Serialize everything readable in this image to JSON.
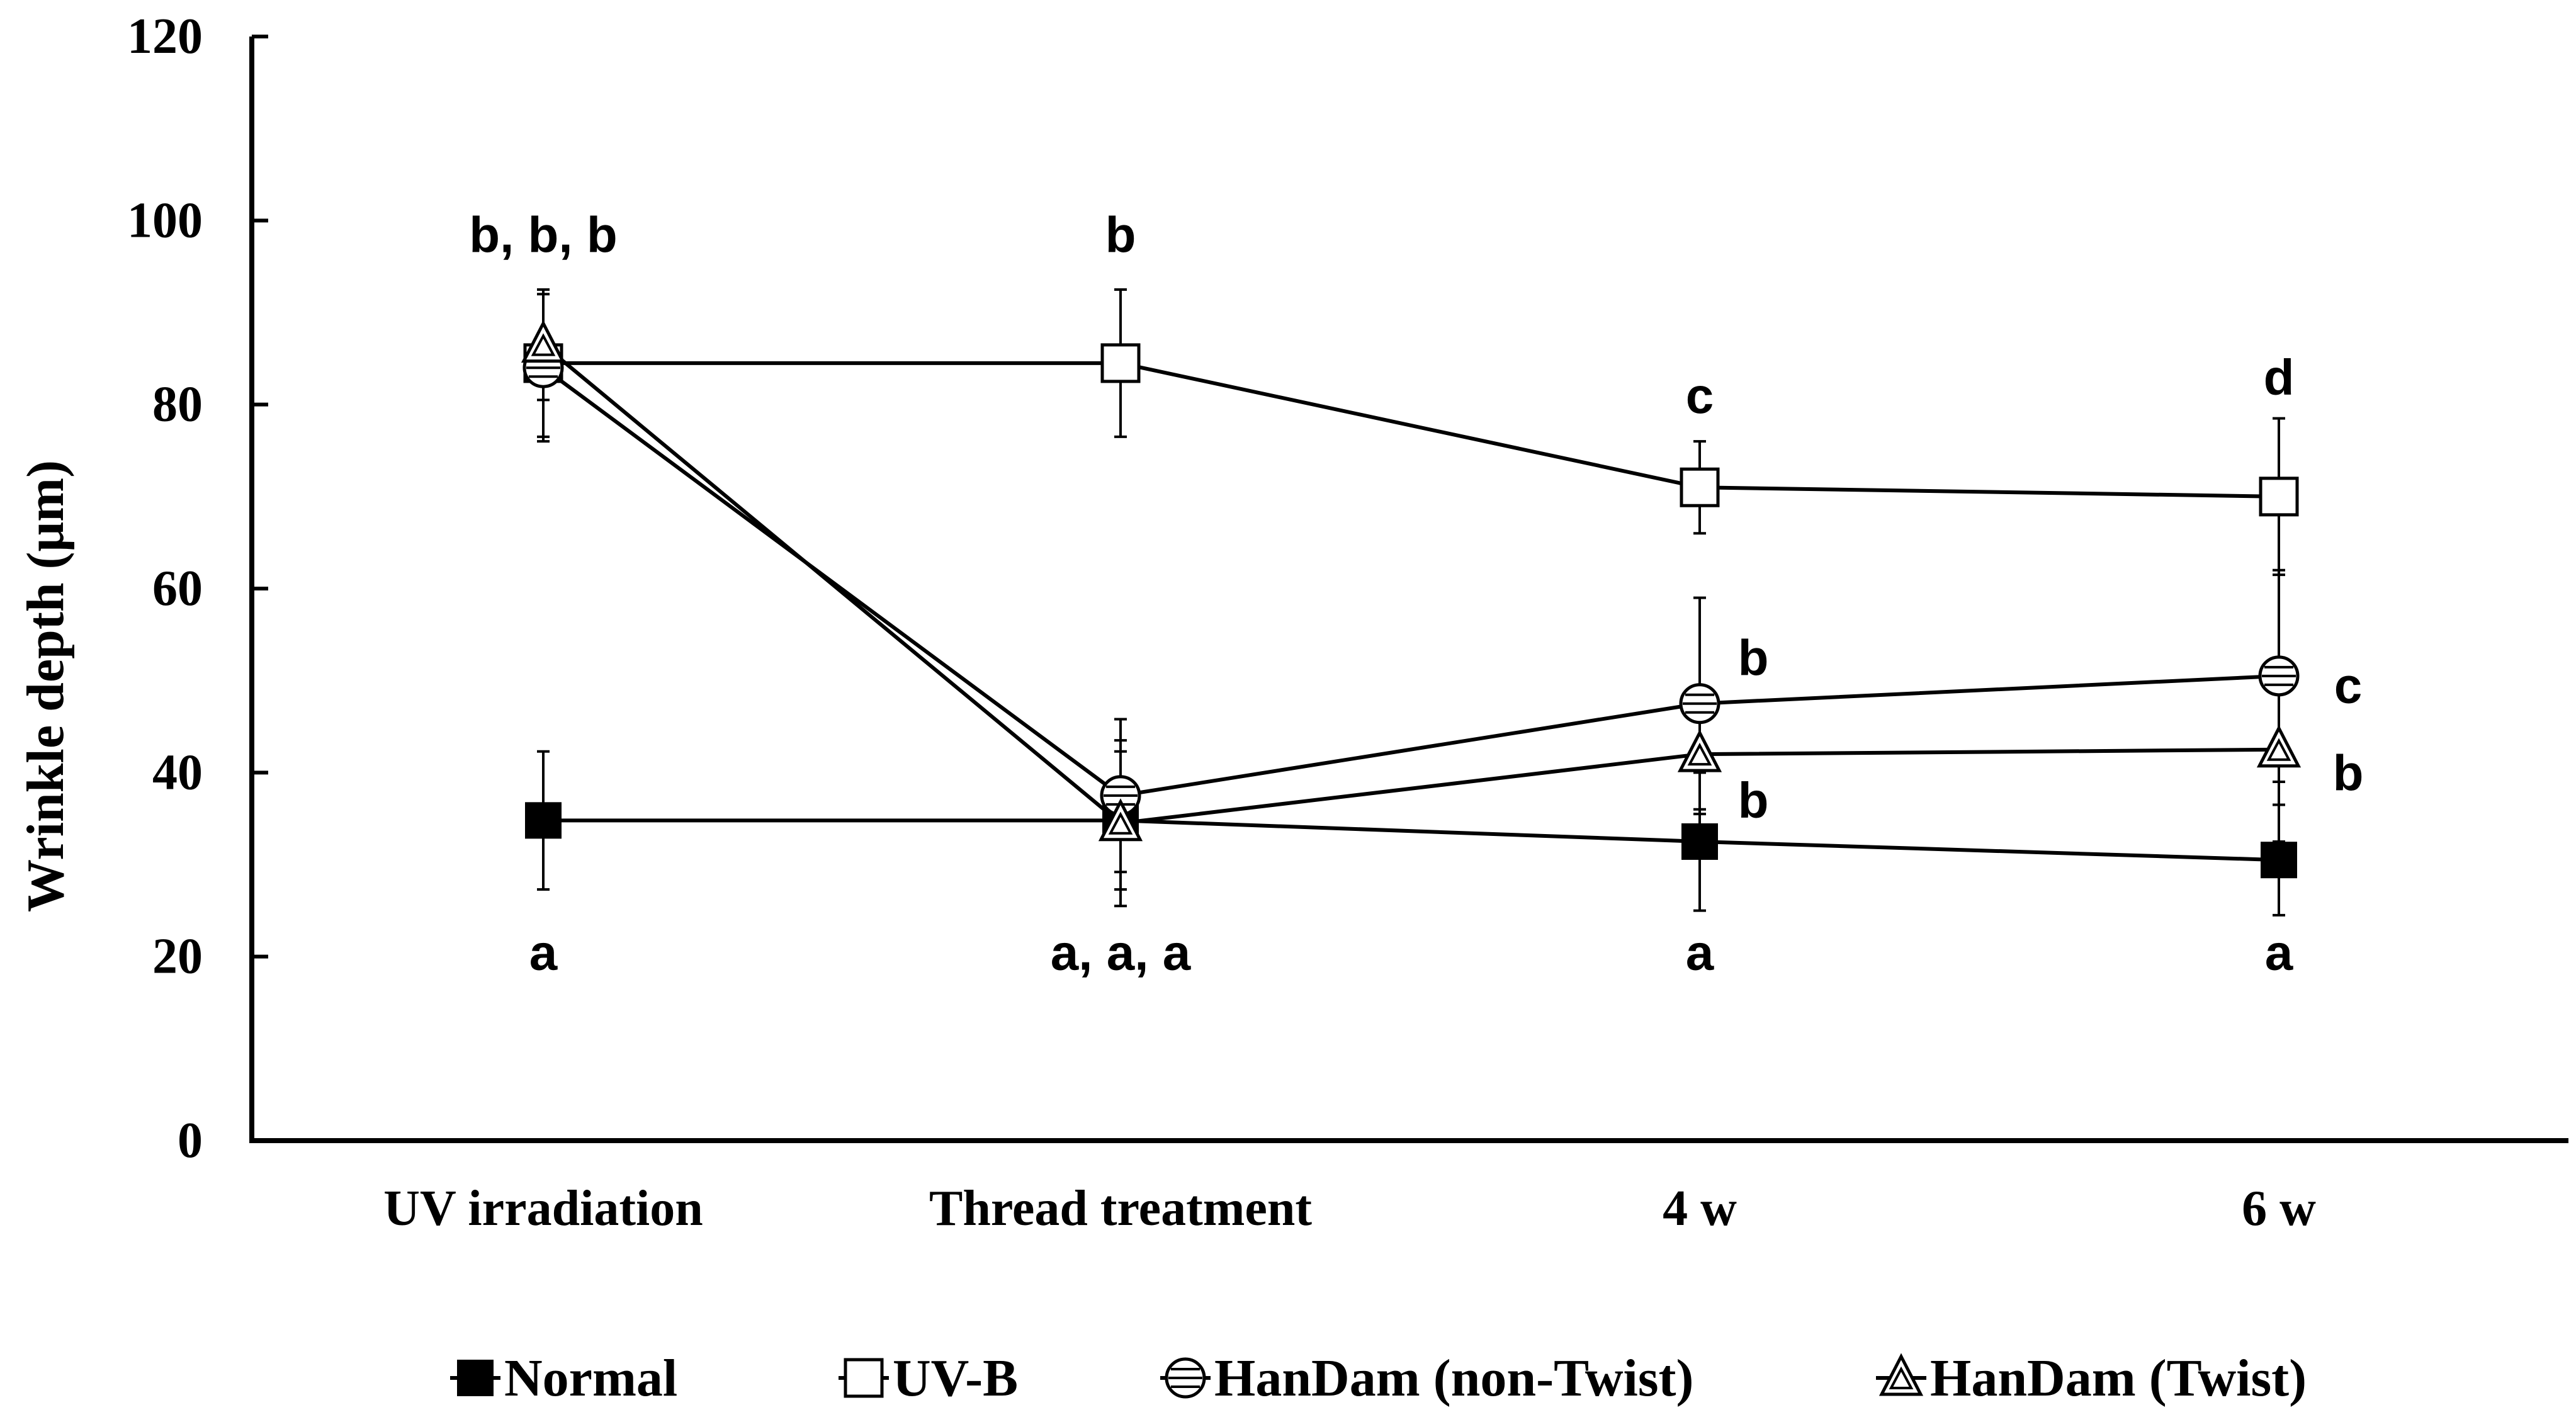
{
  "chart_data": {
    "type": "line",
    "title": "",
    "xlabel": "",
    "ylabel": "Wrinkle depth (μm)",
    "ylim": [
      0,
      120
    ],
    "yticks": [
      0,
      20,
      40,
      60,
      80,
      100,
      120
    ],
    "ytick_labels": [
      "0",
      "20",
      "40",
      "60",
      "80",
      "100",
      "120"
    ],
    "categories": [
      "UV irradiation",
      "Thread treatment",
      "4 w",
      "6 w"
    ],
    "grid": false,
    "legend_position": "bottom",
    "series": [
      {
        "name": "Normal",
        "marker": "filled-square",
        "values": [
          34.8,
          34.8,
          32.5,
          30.5
        ],
        "errors": [
          7.5,
          7.5,
          7.5,
          6.0
        ]
      },
      {
        "name": "UV-B",
        "marker": "open-square",
        "values": [
          84.5,
          84.5,
          71.0,
          70.0
        ],
        "errors": [
          8.0,
          8.0,
          5.0,
          8.5
        ]
      },
      {
        "name": "HanDam (non-Twist)",
        "marker": "striped-circle",
        "values": [
          84.0,
          37.5,
          47.5,
          50.5
        ],
        "errors": [
          8.0,
          8.3,
          11.5,
          11.5
        ]
      },
      {
        "name": "HanDam (Twist)",
        "marker": "open-triangle",
        "values": [
          86.5,
          34.5,
          42.0,
          42.5
        ],
        "errors": [
          6.0,
          9.0,
          6.5,
          10.0
        ]
      }
    ],
    "annotations": [
      {
        "category": 0,
        "y": 98.5,
        "dx": 0,
        "text": "b, b, b"
      },
      {
        "category": 1,
        "y": 98.5,
        "dx": 0,
        "text": "b"
      },
      {
        "category": 2,
        "y": 81.0,
        "dx": 0,
        "text": "c"
      },
      {
        "category": 3,
        "y": 83.0,
        "dx": 0,
        "text": "d"
      },
      {
        "category": 2,
        "y": 52.5,
        "dx": 85,
        "text": "b"
      },
      {
        "category": 3,
        "y": 49.5,
        "dx": 110,
        "text": "c"
      },
      {
        "category": 2,
        "y": 37.0,
        "dx": 85,
        "text": "b"
      },
      {
        "category": 3,
        "y": 40.0,
        "dx": 110,
        "text": "b"
      },
      {
        "category": 0,
        "y": 20.5,
        "dx": 0,
        "text": "a"
      },
      {
        "category": 1,
        "y": 20.5,
        "dx": 0,
        "text": "a, a, a"
      },
      {
        "category": 2,
        "y": 20.5,
        "dx": 0,
        "text": "a"
      },
      {
        "category": 3,
        "y": 20.5,
        "dx": 0,
        "text": "a"
      }
    ]
  }
}
